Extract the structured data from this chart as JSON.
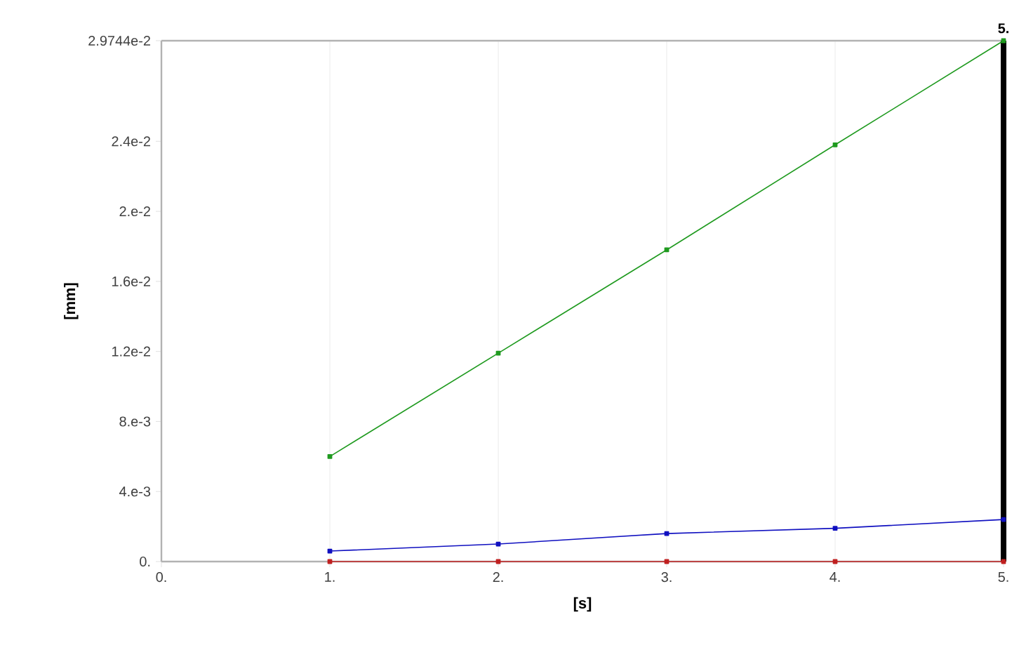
{
  "chart_data": {
    "type": "line",
    "xlabel": "[s]",
    "ylabel": "[mm]",
    "x": [
      1,
      2,
      3,
      4,
      5
    ],
    "series": [
      {
        "color": "#1f9a1f",
        "values": [
          0.006,
          0.0119,
          0.0178,
          0.0238,
          0.029744
        ]
      },
      {
        "color": "#1010c0",
        "values": [
          0.0006,
          0.001,
          0.0016,
          0.0019,
          0.0024
        ]
      },
      {
        "color": "#c02020",
        "values": [
          0,
          0,
          0,
          0,
          0
        ]
      }
    ],
    "xlim": [
      0,
      5
    ],
    "ylim": [
      0,
      0.029744
    ],
    "xticks": [
      {
        "value": 0,
        "label": "0."
      },
      {
        "value": 1,
        "label": "1."
      },
      {
        "value": 2,
        "label": "2."
      },
      {
        "value": 3,
        "label": "3."
      },
      {
        "value": 4,
        "label": "4."
      },
      {
        "value": 5,
        "label": "5."
      }
    ],
    "yticks": [
      {
        "value": 0,
        "label": "0."
      },
      {
        "value": 0.004,
        "label": "4.e-3"
      },
      {
        "value": 0.008,
        "label": "8.e-3"
      },
      {
        "value": 0.012,
        "label": "1.2e-2"
      },
      {
        "value": 0.016,
        "label": "1.6e-2"
      },
      {
        "value": 0.02,
        "label": "2.e-2"
      },
      {
        "value": 0.024,
        "label": "2.4e-2"
      },
      {
        "value": 0.029744,
        "label": "2.9744e-2"
      }
    ],
    "ref_lines": [
      {
        "axis": "x",
        "value": 5,
        "label": "5.",
        "color": "#000000"
      }
    ],
    "grid": "x",
    "marker": "square",
    "line_style": "solid"
  }
}
